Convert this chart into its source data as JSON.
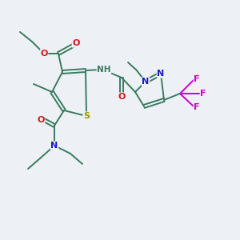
{
  "bg_color": "#edf1f5",
  "colors": {
    "C": "#3a7a60",
    "N": "#1a1acc",
    "O": "#cc1a1a",
    "S": "#999900",
    "F": "#cc00cc",
    "bond": "#3a7a60"
  },
  "lw": 1.4
}
